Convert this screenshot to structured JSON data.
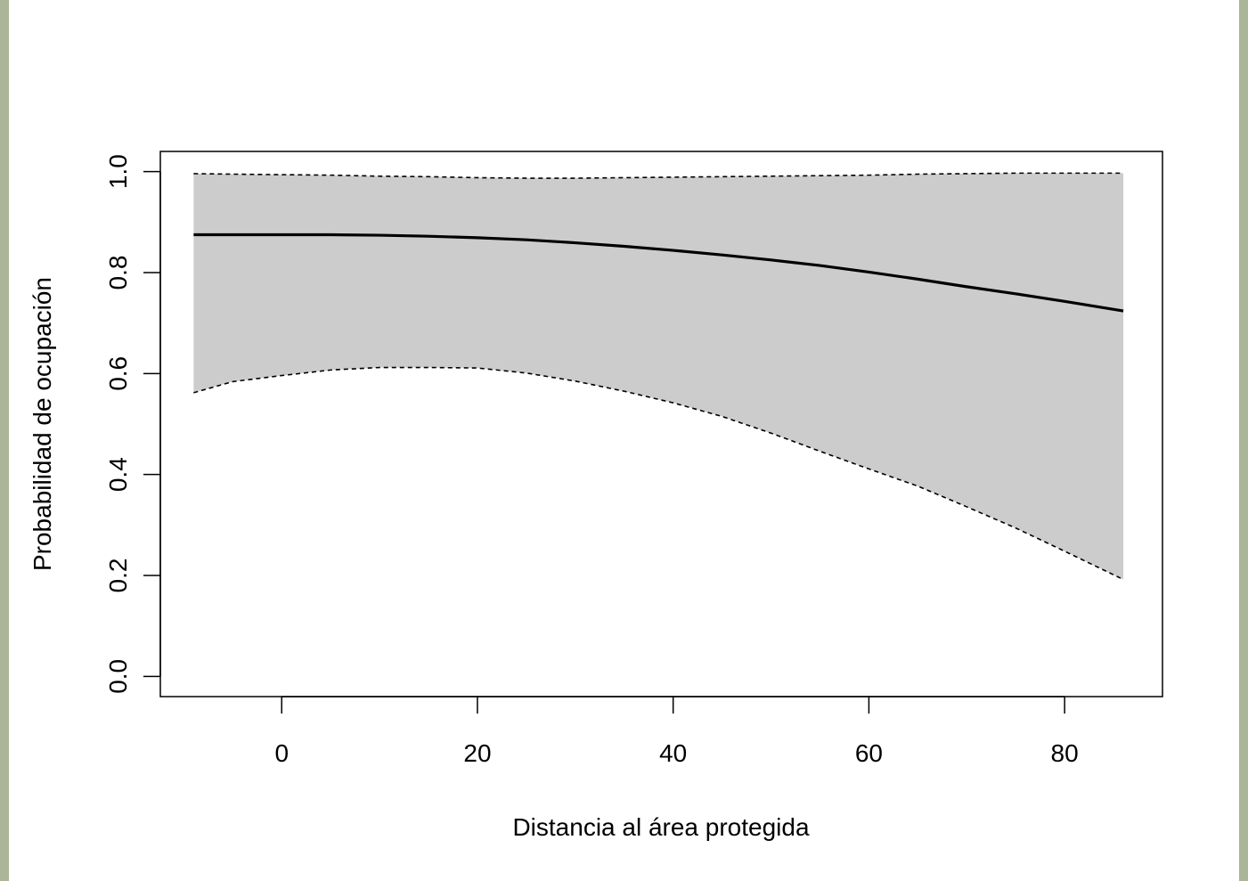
{
  "chart_data": {
    "type": "line",
    "title": "",
    "xlabel": "Distancia al área protegida",
    "ylabel": "Probabilidad de ocupación",
    "xlim": [
      -12.4,
      90
    ],
    "ylim": [
      -0.04,
      1.04
    ],
    "xticks": [
      0,
      20,
      40,
      60,
      80
    ],
    "xtick_labels": [
      "0",
      "20",
      "40",
      "60",
      "80"
    ],
    "yticks": [
      0.0,
      0.2,
      0.4,
      0.6,
      0.8,
      1.0
    ],
    "ytick_labels": [
      "0.0",
      "0.2",
      "0.4",
      "0.6",
      "0.8",
      "1.0"
    ],
    "grid": false,
    "colors": {
      "band": "#cccccc",
      "line": "#000000",
      "page_border": "#abb597"
    },
    "x": [
      -9,
      -5,
      0,
      5,
      10,
      15,
      20,
      25,
      30,
      35,
      40,
      45,
      50,
      55,
      60,
      65,
      70,
      75,
      80,
      86
    ],
    "series": [
      {
        "role": "fit",
        "style": "solid",
        "values": [
          0.875,
          0.875,
          0.875,
          0.875,
          0.874,
          0.872,
          0.869,
          0.865,
          0.859,
          0.852,
          0.844,
          0.835,
          0.825,
          0.814,
          0.801,
          0.787,
          0.772,
          0.758,
          0.743,
          0.724
        ]
      },
      {
        "role": "lower bound",
        "style": "dashed",
        "values": [
          0.562,
          0.584,
          0.596,
          0.607,
          0.612,
          0.612,
          0.611,
          0.601,
          0.585,
          0.565,
          0.542,
          0.515,
          0.482,
          0.446,
          0.411,
          0.377,
          0.336,
          0.294,
          0.248,
          0.192
        ]
      },
      {
        "role": "upper bound",
        "style": "dashed",
        "values": [
          0.996,
          0.995,
          0.994,
          0.993,
          0.991,
          0.99,
          0.988,
          0.987,
          0.987,
          0.988,
          0.989,
          0.99,
          0.991,
          0.992,
          0.993,
          0.995,
          0.996,
          0.997,
          0.997,
          0.997
        ]
      }
    ]
  }
}
